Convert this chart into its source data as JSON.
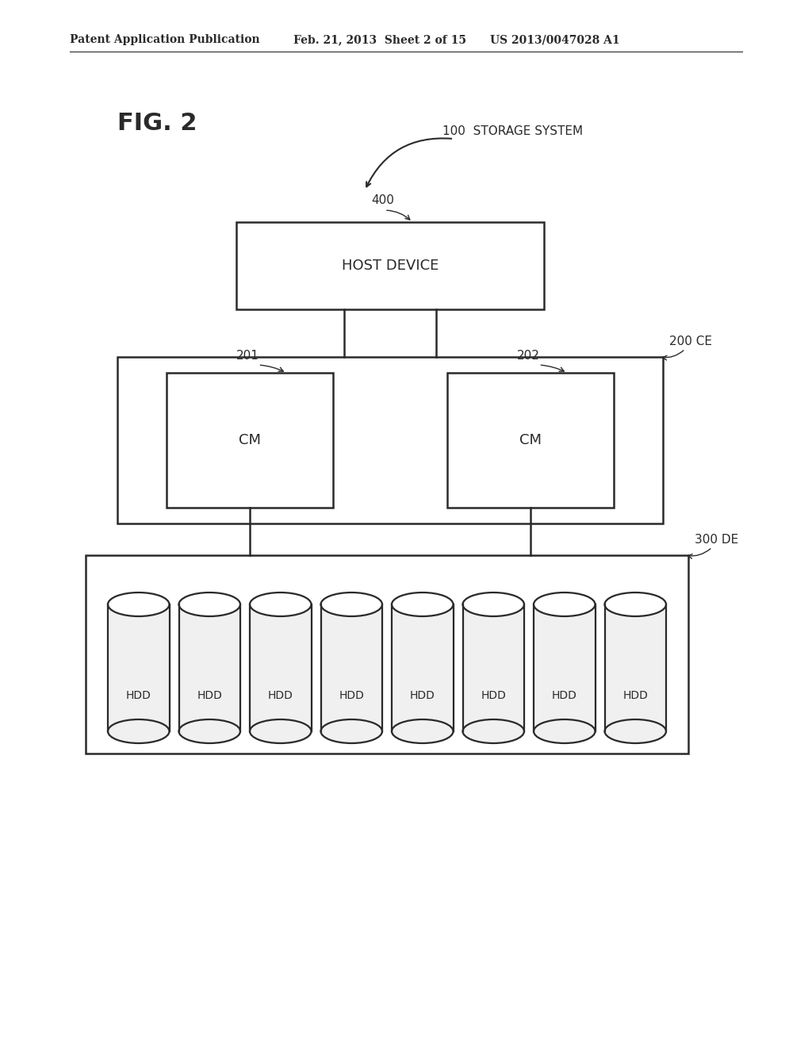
{
  "bg_color": "#ffffff",
  "line_color": "#2a2a2a",
  "header_left": "Patent Application Publication",
  "header_mid": "Feb. 21, 2013  Sheet 2 of 15",
  "header_right": "US 2013/0047028 A1",
  "fig2_label": "FIG. 2",
  "storage_system_label": "100  STORAGE SYSTEM",
  "host_label": "400",
  "host_text": "HOST DEVICE",
  "ce_label": "200 CE",
  "cm1_label": "201",
  "cm1_text": "CM",
  "cm2_label": "202",
  "cm2_text": "CM",
  "de_label": "300 DE",
  "hdd_text": "HDD",
  "num_hdds": 8
}
